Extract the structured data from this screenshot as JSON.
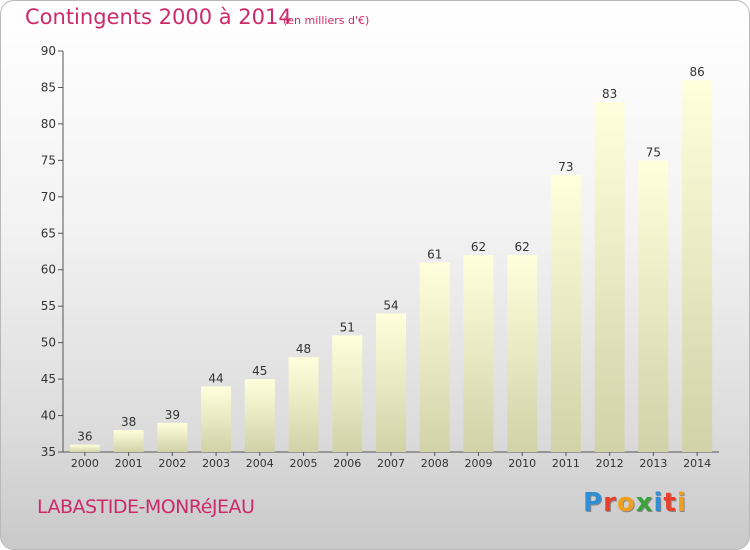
{
  "header": {
    "title": "Contingents 2000 à 2014",
    "subtitle": "(en milliers d'€)"
  },
  "footer": {
    "town": "LABASTIDE-MONRéJEAU",
    "logo": [
      "P",
      "r",
      "o",
      "x",
      "i",
      "t",
      "i"
    ],
    "logo_colors": [
      "#2f8fd6",
      "#e8402a",
      "#f0a020",
      "#3aa23a",
      "#2f8fd6",
      "#e8402a",
      "#f0a020"
    ]
  },
  "chart_data": {
    "type": "bar",
    "categories": [
      "2000",
      "2001",
      "2002",
      "2003",
      "2004",
      "2005",
      "2006",
      "2007",
      "2008",
      "2009",
      "2010",
      "2011",
      "2012",
      "2013",
      "2014"
    ],
    "values": [
      36,
      38,
      39,
      44,
      45,
      48,
      51,
      54,
      61,
      62,
      62,
      73,
      83,
      75,
      86
    ],
    "title": "Contingents 2000 à 2014",
    "ylim": [
      35,
      90
    ],
    "yticks": [
      35,
      40,
      45,
      50,
      55,
      60,
      65,
      70,
      75,
      80,
      85,
      90
    ],
    "grid": false,
    "data_labels": true,
    "bar_color_top": "#ffffdc",
    "bar_color_bottom": "#d2d2a8"
  }
}
